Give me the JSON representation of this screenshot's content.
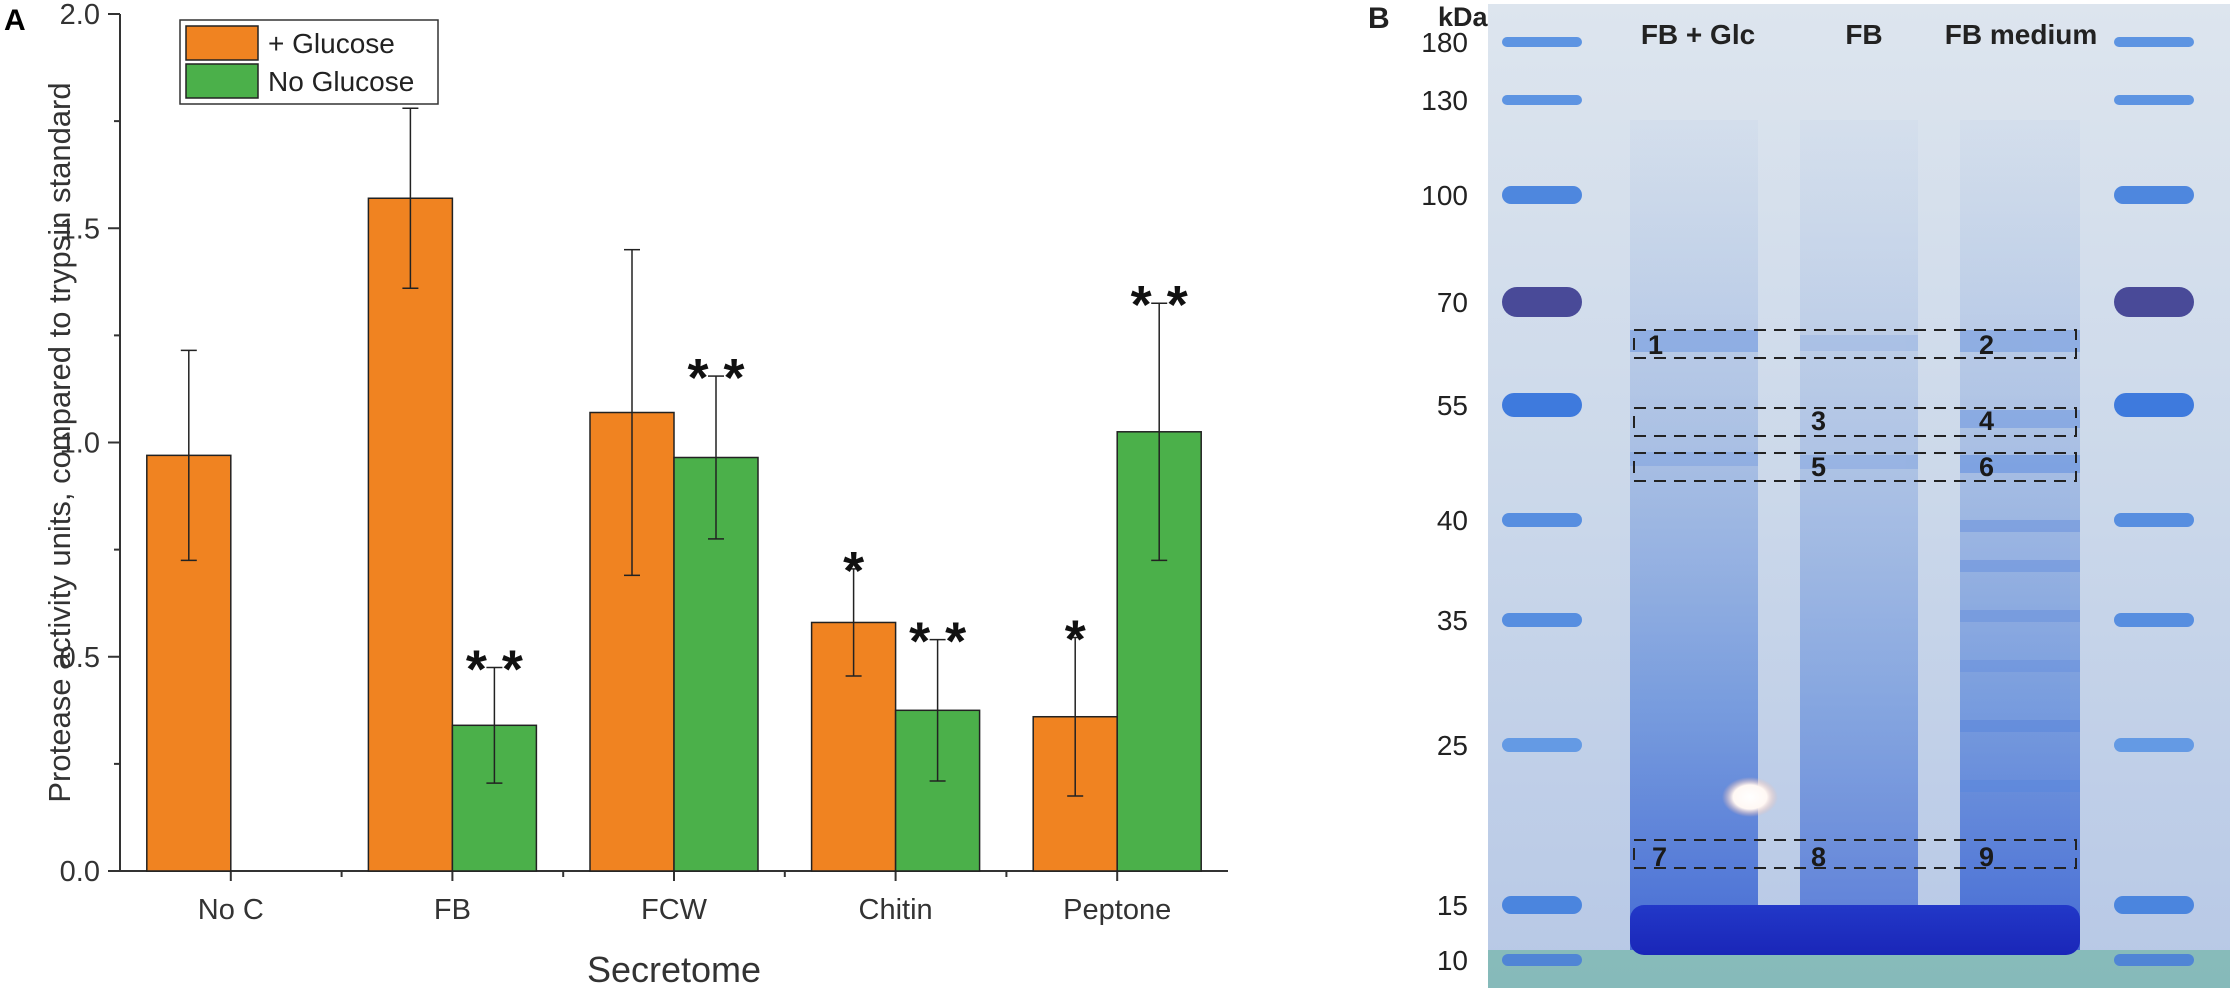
{
  "panel_a_letter": "A",
  "panel_b_letter": "B",
  "chart_data": [
    {
      "type": "bar",
      "title": "",
      "xlabel": "Secretome",
      "ylabel": "Protease activity units, compared to trypsin standard",
      "ylim": [
        0,
        2.0
      ],
      "yticks": [
        "0.0",
        "0.5",
        "1.0",
        "1.5",
        "2.0"
      ],
      "categories": [
        "No C",
        "FB",
        "FCW",
        "Chitin",
        "Peptone"
      ],
      "legend_position": "top-left",
      "series": [
        {
          "name": "+ Glucose",
          "color": "#f08321",
          "values": [
            0.97,
            1.57,
            1.07,
            0.58,
            0.36
          ],
          "errors": [
            0.245,
            0.21,
            0.38,
            0.125,
            0.185
          ],
          "significance": [
            "",
            "",
            "",
            "*",
            "*"
          ]
        },
        {
          "name": "No Glucose",
          "color": "#4bb04a",
          "values": [
            null,
            0.34,
            0.965,
            0.375,
            1.025
          ],
          "errors": [
            null,
            0.135,
            0.19,
            0.165,
            0.3
          ],
          "significance": [
            "",
            "* *",
            "* *",
            "* *",
            "* *"
          ]
        }
      ]
    },
    {
      "type": "gel",
      "unit_label": "kDa",
      "marker_kda": [
        "180",
        "130",
        "100",
        "70",
        "55",
        "40",
        "35",
        "25",
        "15",
        "10"
      ],
      "lanes": [
        "FB + Glc",
        "FB",
        "FB medium"
      ],
      "band_boxes": [
        "1",
        "2",
        "3",
        "4",
        "5",
        "6",
        "7",
        "8",
        "9"
      ]
    }
  ]
}
